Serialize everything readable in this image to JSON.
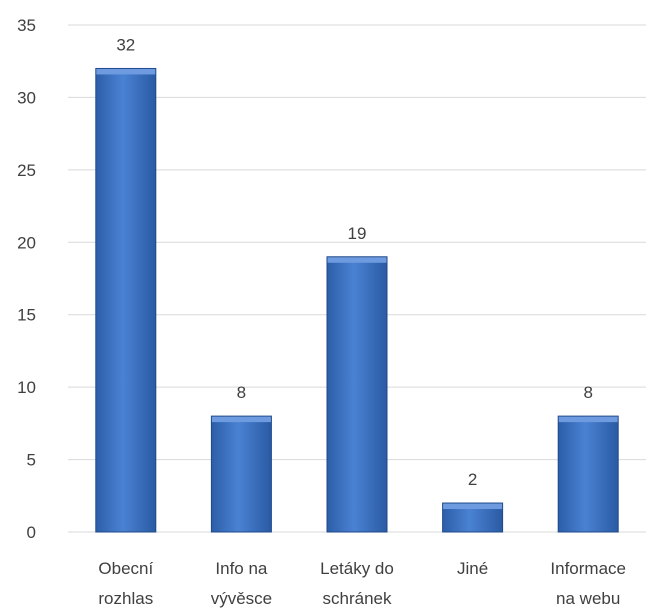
{
  "chart_data": {
    "type": "bar",
    "title": "",
    "xlabel": "",
    "ylabel": "",
    "categories": [
      [
        "Obecní",
        "rozhlas"
      ],
      [
        "Info na",
        "vývěsce"
      ],
      [
        "Letáky do",
        "schránek"
      ],
      [
        "Jiné"
      ],
      [
        "Informace",
        "na webu"
      ]
    ],
    "values": [
      32,
      8,
      19,
      2,
      8
    ],
    "ylim": [
      0,
      35
    ],
    "yticks": [
      0,
      5,
      10,
      15,
      20,
      25,
      30,
      35
    ],
    "grid": true,
    "legend": "none",
    "bar_color": "#3f72bf",
    "bar_color_light": "#6e9be0",
    "bar_color_dark": "#1f4a8a"
  }
}
